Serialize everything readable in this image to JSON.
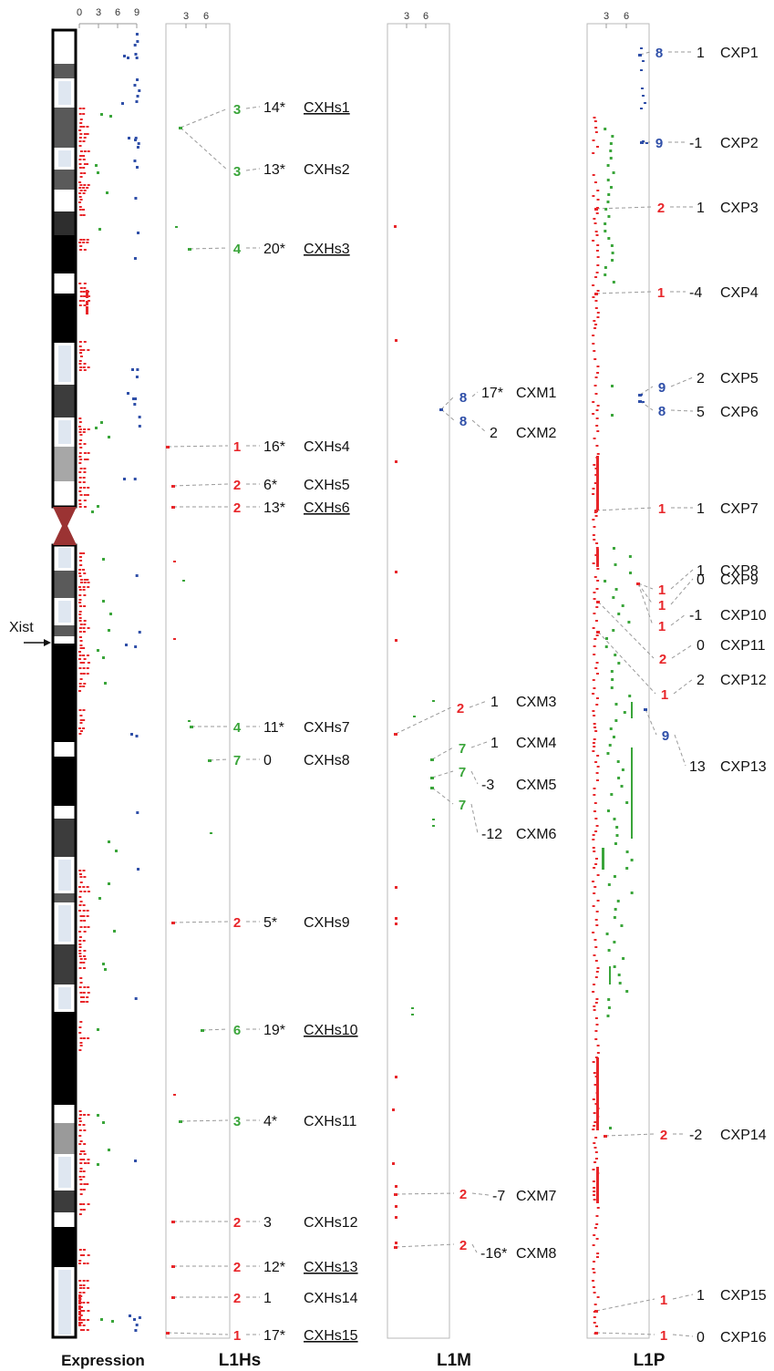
{
  "colors": {
    "class1_2": "#e8262a",
    "class3_7": "#3aa53a",
    "class8_9": "#2f4fa8",
    "leader": "#9a9a9a",
    "centromere": "#9b3333",
    "label": "#111111"
  },
  "tick_labels": {
    "expression": [
      "0",
      "3",
      "6",
      "9"
    ],
    "panel": [
      "3",
      "6"
    ]
  },
  "xist_label": "Xist",
  "panels": [
    {
      "id": "expression",
      "title": "Expression"
    },
    {
      "id": "l1hs",
      "title": "L1Hs"
    },
    {
      "id": "l1m",
      "title": "L1M"
    },
    {
      "id": "l1p",
      "title": "L1P"
    }
  ],
  "loci": {
    "l1hs": [
      {
        "cls": "3",
        "score": "14*",
        "name": "CXHs1",
        "underline": true
      },
      {
        "cls": "3",
        "score": "13*",
        "name": "CXHs2",
        "underline": false
      },
      {
        "cls": "4",
        "score": "20*",
        "name": "CXHs3",
        "underline": true
      },
      {
        "cls": "1",
        "score": "16*",
        "name": "CXHs4",
        "underline": false
      },
      {
        "cls": "2",
        "score": "6*",
        "name": "CXHs5",
        "underline": false
      },
      {
        "cls": "2",
        "score": "13*",
        "name": "CXHs6",
        "underline": true
      },
      {
        "cls": "4",
        "score": "11*",
        "name": "CXHs7",
        "underline": false
      },
      {
        "cls": "7",
        "score": "0",
        "name": "CXHs8",
        "underline": false
      },
      {
        "cls": "2",
        "score": "5*",
        "name": "CXHs9",
        "underline": false
      },
      {
        "cls": "6",
        "score": "19*",
        "name": "CXHs10",
        "underline": true
      },
      {
        "cls": "3",
        "score": "4*",
        "name": "CXHs11",
        "underline": false
      },
      {
        "cls": "2",
        "score": "3",
        "name": "CXHs12",
        "underline": false
      },
      {
        "cls": "2",
        "score": "12*",
        "name": "CXHs13",
        "underline": true
      },
      {
        "cls": "2",
        "score": "1",
        "name": "CXHs14",
        "underline": false
      },
      {
        "cls": "1",
        "score": "17*",
        "name": "CXHs15",
        "underline": true
      }
    ],
    "l1m": [
      {
        "cls": "8",
        "score": "17*",
        "name": "CXM1"
      },
      {
        "cls": "8",
        "score": "2",
        "name": "CXM2"
      },
      {
        "cls": "2",
        "score": "1",
        "name": "CXM3"
      },
      {
        "cls": "7",
        "score": "1",
        "name": "CXM4"
      },
      {
        "cls": "7",
        "score": "-3",
        "name": "CXM5"
      },
      {
        "cls": "7",
        "score": "-12",
        "name": "CXM6"
      },
      {
        "cls": "2",
        "score": "-7",
        "name": "CXM7"
      },
      {
        "cls": "2",
        "score": "-16*",
        "name": "CXM8"
      }
    ],
    "l1p": [
      {
        "cls": "8",
        "score": "1",
        "name": "CXP1"
      },
      {
        "cls": "9",
        "score": "-1",
        "name": "CXP2"
      },
      {
        "cls": "2",
        "score": "1",
        "name": "CXP3"
      },
      {
        "cls": "1",
        "score": "-4",
        "name": "CXP4"
      },
      {
        "cls": "9",
        "score": "2",
        "name": "CXP5"
      },
      {
        "cls": "8",
        "score": "5",
        "name": "CXP6"
      },
      {
        "cls": "1",
        "score": "1",
        "name": "CXP7"
      },
      {
        "cls": "1",
        "score": "1",
        "name": "CXP8"
      },
      {
        "cls": "1",
        "score": "0",
        "name": "CXP9"
      },
      {
        "cls": "1",
        "score": "-1",
        "name": "CXP10"
      },
      {
        "cls": "2",
        "score": "0",
        "name": "CXP11"
      },
      {
        "cls": "1",
        "score": "2",
        "name": "CXP12"
      },
      {
        "cls": "9",
        "score": "13",
        "name": "CXP13"
      },
      {
        "cls": "2",
        "score": "-2",
        "name": "CXP14"
      },
      {
        "cls": "1",
        "score": "1",
        "name": "CXP15"
      },
      {
        "cls": "1",
        "score": "0",
        "name": "CXP16"
      }
    ]
  }
}
